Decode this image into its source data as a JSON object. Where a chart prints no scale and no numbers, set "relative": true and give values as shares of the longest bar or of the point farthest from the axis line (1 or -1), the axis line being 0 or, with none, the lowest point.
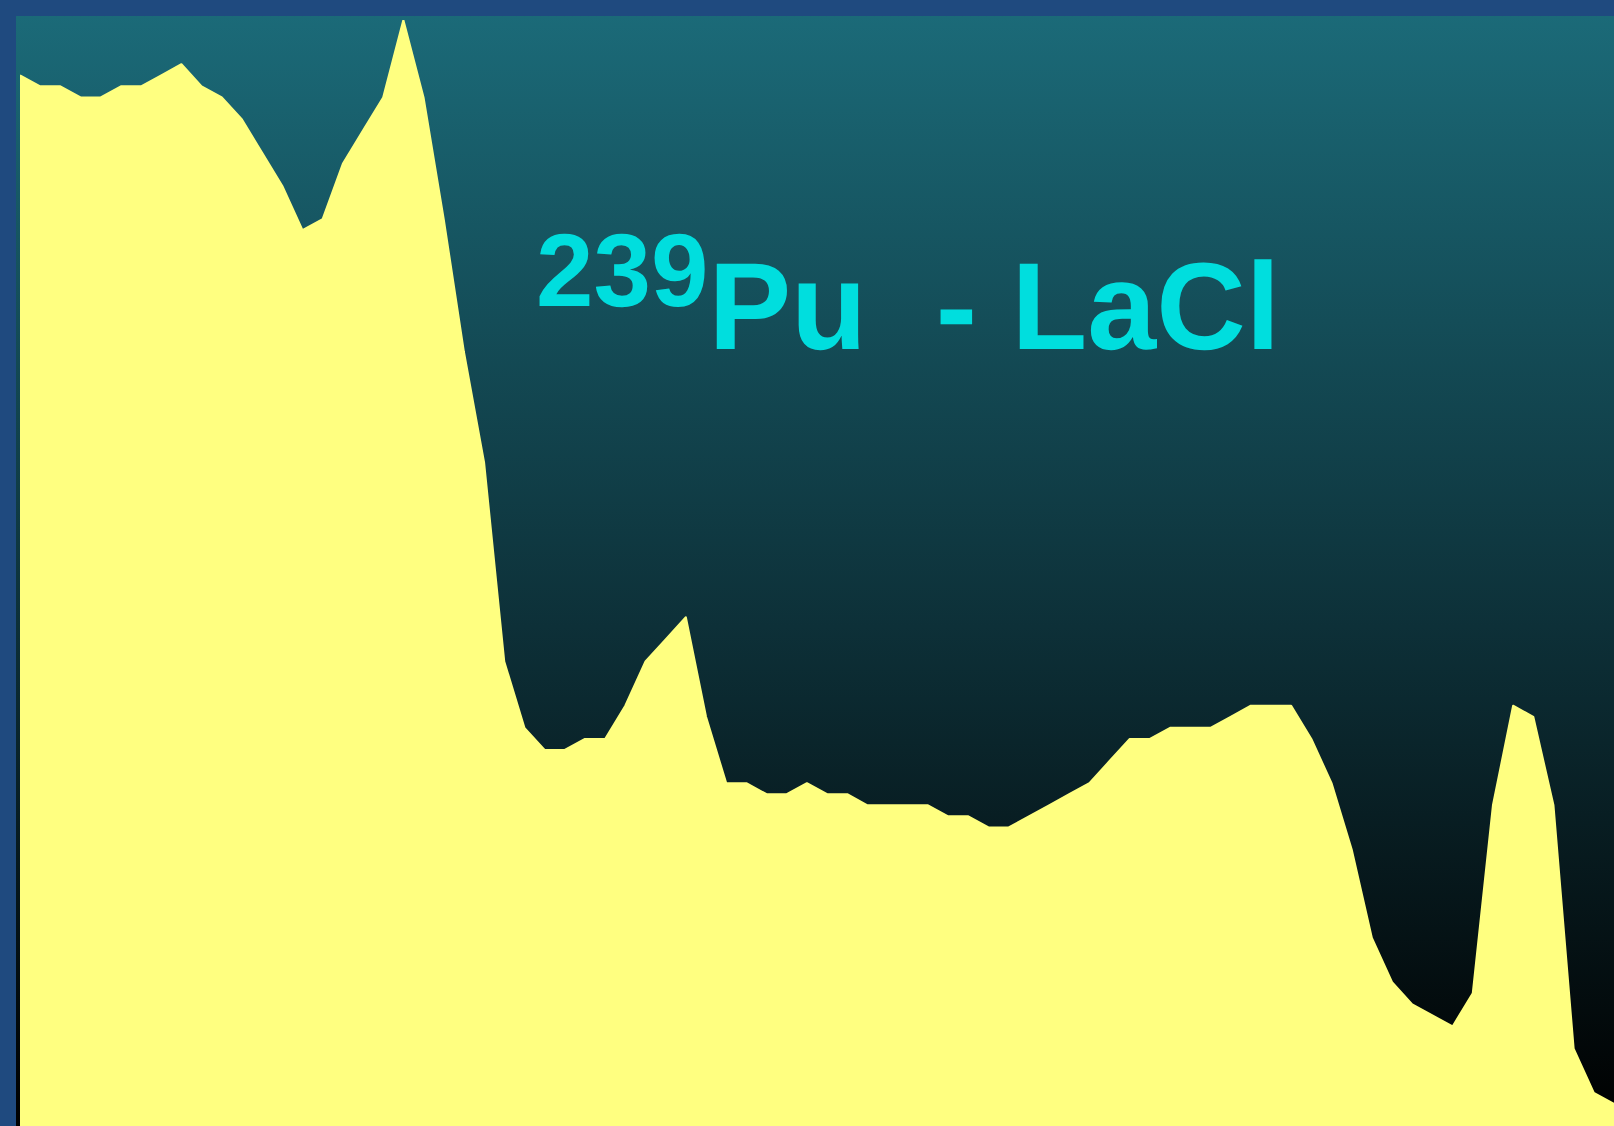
{
  "chart_data": {
    "type": "area",
    "title": "$^{239}$Pu  - LaCl",
    "relative": true,
    "categories": [
      null,
      null,
      null,
      null,
      null,
      null,
      null,
      null,
      null,
      null,
      null,
      null,
      null,
      null,
      null,
      null,
      null,
      null,
      null,
      null,
      null,
      null,
      null,
      null,
      null,
      null,
      null,
      null,
      null,
      null,
      null,
      null,
      null,
      null,
      null,
      null,
      null,
      null,
      null,
      null,
      null,
      null,
      null,
      null,
      null,
      null,
      null,
      null,
      null,
      null,
      null,
      null,
      null,
      null,
      null,
      null,
      null,
      null,
      null,
      null,
      null,
      null,
      null,
      null,
      null,
      null,
      null,
      null,
      null,
      null,
      null,
      null,
      null,
      null,
      null,
      null,
      null,
      null,
      null,
      null
    ],
    "series": [
      {
        "color": "#ffff80",
        "values": [
          0.95,
          0.94,
          0.94,
          0.93,
          0.93,
          0.94,
          0.94,
          0.95,
          0.96,
          0.94,
          0.93,
          0.91,
          0.88,
          0.85,
          0.81,
          0.82,
          0.87,
          0.9,
          0.93,
          1,
          0.93,
          0.82,
          0.7,
          0.6,
          0.42,
          0.36,
          0.34,
          0.34,
          0.35,
          0.35,
          0.38,
          0.42,
          0.44,
          0.46,
          0.37,
          0.31,
          0.31,
          0.3,
          0.3,
          0.31,
          0.3,
          0.3,
          0.29,
          0.29,
          0.29,
          0.29,
          0.28,
          0.28,
          0.27,
          0.27,
          0.28,
          0.29,
          0.3,
          0.31,
          0.33,
          0.35,
          0.35,
          0.36,
          0.36,
          0.36,
          0.37,
          0.38,
          0.38,
          0.38,
          0.35,
          0.31,
          0.25,
          0.17,
          0.13,
          0.11,
          0.1,
          0.09,
          0.12,
          0.29,
          0.38,
          0.37,
          0.29,
          0.07,
          0.03,
          0.02
        ]
      }
    ],
    "legend": false
  }
}
